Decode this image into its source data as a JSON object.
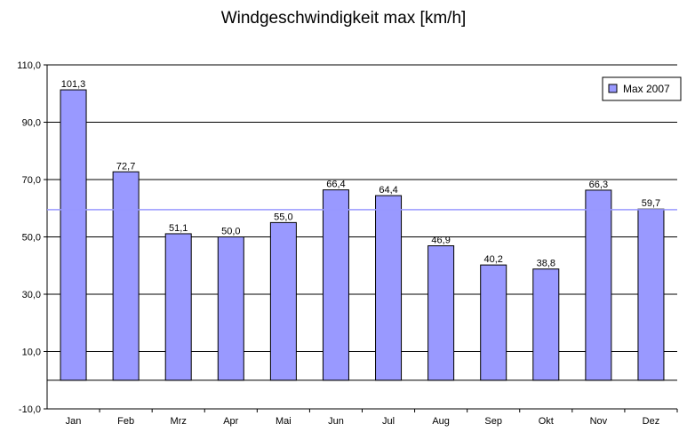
{
  "chart_data": {
    "type": "bar",
    "title": "Windgeschwindigkeit max [km/h]",
    "xlabel": "",
    "ylabel": "",
    "categories": [
      "Jan",
      "Feb",
      "Mrz",
      "Apr",
      "Mai",
      "Jun",
      "Jul",
      "Aug",
      "Sep",
      "Okt",
      "Nov",
      "Dez"
    ],
    "series": [
      {
        "name": "Max 2007",
        "values": [
          101.3,
          72.7,
          51.1,
          50.0,
          55.0,
          66.4,
          64.4,
          46.9,
          40.2,
          38.8,
          66.3,
          59.7
        ],
        "value_labels": [
          "101,3",
          "72,7",
          "51,1",
          "50,0",
          "55,0",
          "66,4",
          "64,4",
          "46,9",
          "40,2",
          "38,8",
          "66,3",
          "59,7"
        ]
      }
    ],
    "reference_line": 59.5,
    "ylim": [
      -10,
      110
    ],
    "yticks": [
      -10,
      10,
      30,
      50,
      70,
      90,
      110
    ],
    "ytick_labels": [
      "-10,0",
      "10,0",
      "30,0",
      "50,0",
      "70,0",
      "90,0",
      "110,0"
    ],
    "grid": true,
    "legend_position": "top-right",
    "colors": {
      "bar_fill": "#9999ff",
      "bar_stroke": "#000000",
      "reference_line": "#9999ff",
      "grid": "#000000"
    }
  }
}
